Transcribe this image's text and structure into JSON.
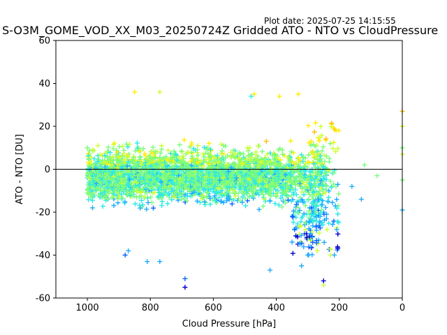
{
  "plot_date": "Plot date: 2025-07-25 14:15:55",
  "chart_data": {
    "type": "scatter",
    "title": "S-O3M_GOME_VOD_XX_M03_20250724Z Gridded ATO - NTO vs CloudPressure",
    "xlabel": "Cloud Pressure [hPa]",
    "ylabel": "ATO - NTO [DU]",
    "xlim": [
      1100,
      0
    ],
    "ylim": [
      -60,
      60
    ],
    "x_reversed": true,
    "grid": false,
    "marker": "+",
    "x_ticks": [
      1000,
      800,
      600,
      400,
      200,
      0
    ],
    "y_ticks": [
      -60,
      -40,
      -20,
      0,
      20,
      40,
      60
    ],
    "reference_line_y": 0,
    "colormap": [
      "#0000cd",
      "#0a64ff",
      "#1eaaff",
      "#2de8e8",
      "#7cfc7c",
      "#ccff33",
      "#ffee00",
      "#ffbb00"
    ],
    "cloud_pressure_range": [
      1000,
      200
    ],
    "typical_spread_du": [
      -20,
      20
    ],
    "outlier_points": [
      [
        850,
        36
      ],
      [
        770,
        36
      ],
      [
        470,
        35
      ],
      [
        330,
        35
      ],
      [
        390,
        34
      ],
      [
        480,
        34
      ],
      [
        690,
        -55
      ],
      [
        690,
        -51
      ],
      [
        770,
        -43
      ],
      [
        880,
        -40
      ],
      [
        870,
        -38
      ],
      [
        810,
        -43
      ],
      [
        420,
        -47
      ],
      [
        320,
        -45
      ],
      [
        250,
        -54
      ],
      [
        250,
        -52
      ],
      [
        300,
        -40
      ],
      [
        270,
        -38
      ],
      [
        160,
        -8
      ],
      [
        130,
        -14
      ],
      [
        120,
        2
      ],
      [
        80,
        -3
      ],
      [
        210,
        18
      ],
      [
        0,
        27
      ],
      [
        0,
        20
      ],
      [
        0,
        10
      ],
      [
        0,
        7
      ],
      [
        0,
        -5
      ],
      [
        0,
        -19
      ],
      [
        1000,
        10
      ]
    ]
  }
}
